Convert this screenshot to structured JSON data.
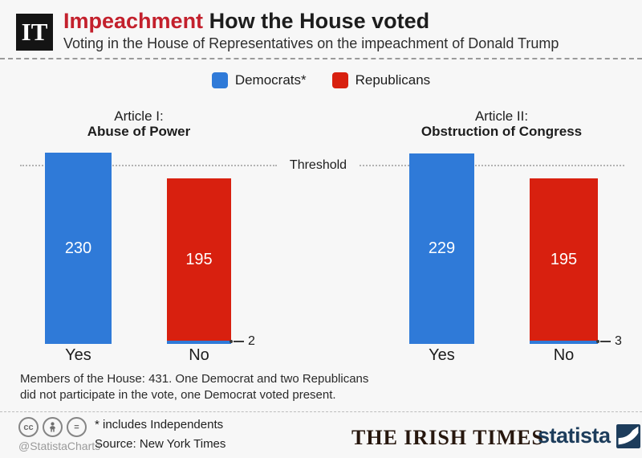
{
  "header": {
    "logo": "IT",
    "title_red": "Impeachment",
    "title_black": "How the House voted",
    "subtitle": "Voting in the House of Representatives on the impeachment of Donald Trump"
  },
  "legend": {
    "democrats": "Democrats*",
    "republicans": "Republicans"
  },
  "colors": {
    "democrat_blue": "#2f7ad8",
    "republican_red": "#d8200f",
    "title_red": "#c3202c",
    "statista_navy": "#1d3d5c"
  },
  "chart_data": {
    "type": "bar",
    "ylim": [
      0,
      240
    ],
    "threshold": {
      "label": "Threshold",
      "value": 216
    },
    "groups": [
      {
        "title_line1": "Article I:",
        "title_line2": "Abuse of Power",
        "categories": [
          "Yes",
          "No"
        ],
        "bars": [
          {
            "label": "Yes",
            "value_label": "230",
            "segments": [
              {
                "party": "Democrats",
                "value": 230
              }
            ]
          },
          {
            "label": "No",
            "value_label": "195",
            "callout": "2",
            "segments": [
              {
                "party": "Republicans",
                "value": 195
              },
              {
                "party": "Democrats",
                "value": 2
              }
            ]
          }
        ]
      },
      {
        "title_line1": "Article II:",
        "title_line2": "Obstruction of Congress",
        "categories": [
          "Yes",
          "No"
        ],
        "bars": [
          {
            "label": "Yes",
            "value_label": "229",
            "segments": [
              {
                "party": "Democrats",
                "value": 229
              }
            ]
          },
          {
            "label": "No",
            "value_label": "195",
            "callout": "3",
            "segments": [
              {
                "party": "Republicans",
                "value": 195
              },
              {
                "party": "Democrats",
                "value": 3
              }
            ]
          }
        ]
      }
    ]
  },
  "note": {
    "line1": "Members of the House: 431. One Democrat and two Republicans",
    "line2": "did not participate in the vote, one Democrat voted present."
  },
  "footer": {
    "cc": "cc",
    "equals": "=",
    "handle": "@StatistaCharts",
    "footnote": "* includes Independents",
    "source": "Source: New York Times",
    "publisher": "THE IRISH TIMES",
    "brand": "statista"
  }
}
